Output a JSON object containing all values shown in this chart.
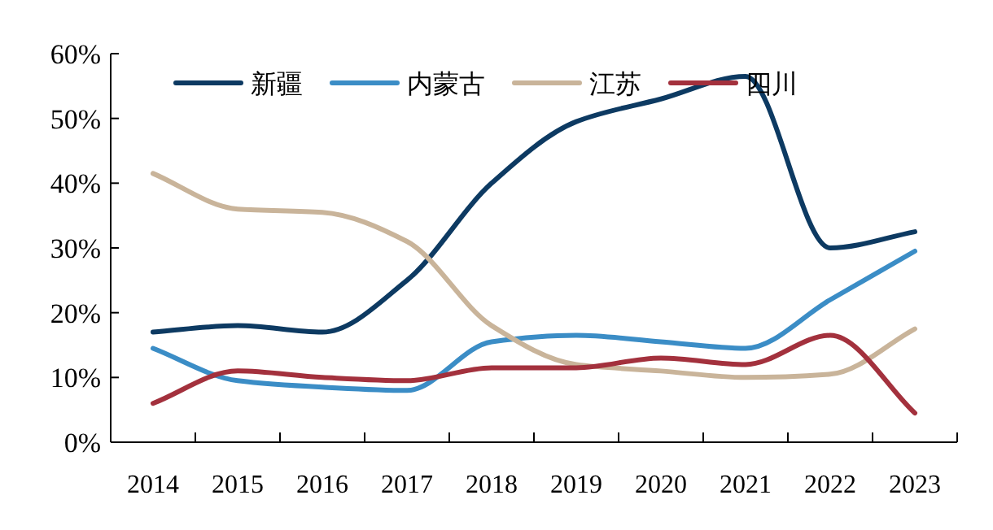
{
  "chart_data": {
    "type": "line",
    "categories": [
      "2014",
      "2015",
      "2016",
      "2017",
      "2018",
      "2019",
      "2020",
      "2021",
      "2022",
      "2023"
    ],
    "series": [
      {
        "name": "新疆",
        "color": "#0d3a62",
        "values": [
          17,
          18,
          17,
          25,
          40,
          49.5,
          53,
          56.5,
          30,
          32.5
        ]
      },
      {
        "name": "内蒙古",
        "color": "#3b8dc6",
        "values": [
          14.5,
          9.5,
          8.5,
          8,
          15.5,
          16.5,
          15.5,
          14.5,
          22,
          29.5
        ]
      },
      {
        "name": "江苏",
        "color": "#c9b49a",
        "values": [
          41.5,
          36,
          35.5,
          31,
          18,
          12,
          11,
          10,
          10.5,
          17.5
        ]
      },
      {
        "name": "四川",
        "color": "#a3313d",
        "values": [
          6,
          11,
          10,
          9.5,
          11.5,
          11.5,
          13,
          12,
          16.5,
          4.5
        ]
      }
    ],
    "ylim": [
      0,
      60
    ],
    "yticks": [
      {
        "value": 0,
        "label": "0%"
      },
      {
        "value": 10,
        "label": "10%"
      },
      {
        "value": 20,
        "label": "20%"
      },
      {
        "value": 30,
        "label": "30%"
      },
      {
        "value": 40,
        "label": "40%"
      },
      {
        "value": 50,
        "label": "50%"
      },
      {
        "value": 60,
        "label": "60%"
      }
    ],
    "grid": false,
    "legend": "top",
    "marker": "none",
    "line_style": "solid"
  }
}
